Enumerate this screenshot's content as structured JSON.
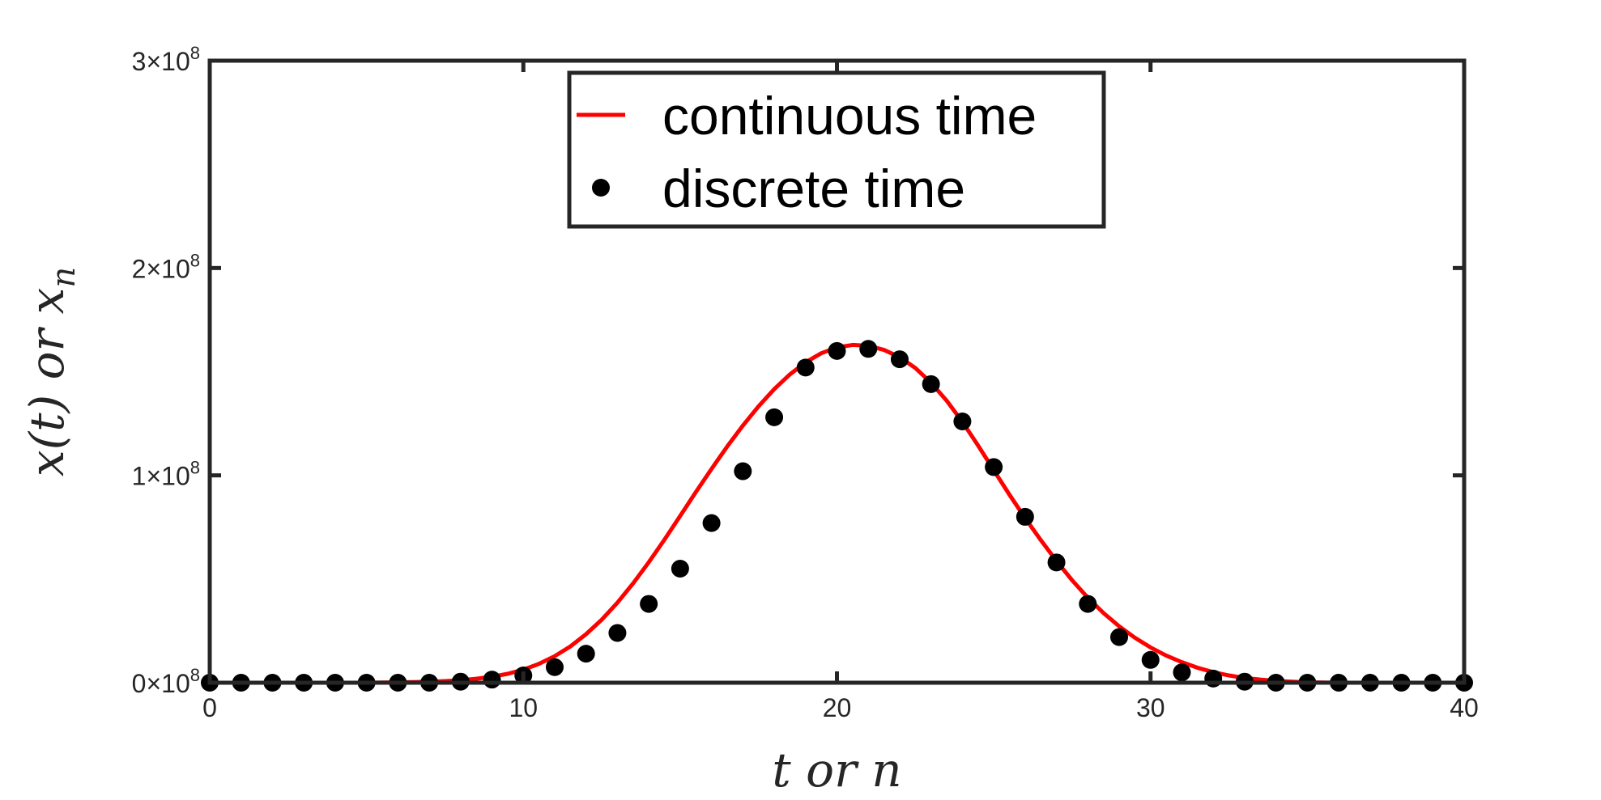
{
  "chart_data": {
    "type": "line",
    "xlabel": "t or n",
    "ylabel": "x(t) or x_n",
    "xlim": [
      0,
      40
    ],
    "ylim": [
      0,
      300000000
    ],
    "x_ticks": [
      0,
      10,
      20,
      30,
      40
    ],
    "x_tick_labels": [
      "0",
      "10",
      "20",
      "30",
      "40"
    ],
    "y_ticks": [
      0,
      100000000,
      200000000,
      300000000
    ],
    "y_tick_labels": [
      {
        "mant": "0",
        "times": "×",
        "base": "10",
        "exp": "8"
      },
      {
        "mant": "1",
        "times": "×",
        "base": "10",
        "exp": "8"
      },
      {
        "mant": "2",
        "times": "×",
        "base": "10",
        "exp": "8"
      },
      {
        "mant": "3",
        "times": "×",
        "base": "10",
        "exp": "8"
      }
    ],
    "grid": false,
    "legend_position": "top-center",
    "colors": {
      "axes": "#262626",
      "continuous": "#ff0000",
      "discrete": "#000000"
    },
    "series": [
      {
        "name": "continuous time",
        "kind": "line",
        "x": [
          0,
          0.5,
          1,
          1.5,
          2,
          2.5,
          3,
          3.5,
          4,
          4.5,
          5,
          5.5,
          6,
          6.5,
          7,
          7.5,
          8,
          8.5,
          9,
          9.5,
          10,
          10.5,
          11,
          11.5,
          12,
          12.5,
          13,
          13.5,
          14,
          14.5,
          15,
          15.5,
          16,
          16.5,
          17,
          17.5,
          18,
          18.5,
          19,
          19.5,
          20,
          20.5,
          21,
          21.5,
          22,
          22.5,
          23,
          23.5,
          24,
          24.5,
          25,
          25.5,
          26,
          26.5,
          27,
          27.5,
          28,
          28.5,
          29,
          29.5,
          30,
          30.5,
          31,
          31.5,
          32,
          32.5,
          33,
          33.5,
          34,
          34.5,
          35,
          35.5,
          36,
          36.5,
          37,
          37.5,
          38,
          38.5,
          39,
          39.5,
          40
        ],
        "y": [
          0,
          0,
          0,
          0,
          0,
          0,
          0,
          0,
          0,
          0,
          0,
          100000,
          200000,
          300000,
          500000,
          800000,
          1200000,
          1900000,
          2900000,
          4300000,
          6300000,
          9100000,
          12800000,
          17500000,
          23400000,
          30400000,
          38600000,
          47900000,
          58100000,
          69000000,
          80400000,
          91900000,
          103100000,
          113900000,
          124000000,
          133300000,
          141600000,
          148700000,
          154500000,
          158900000,
          161700000,
          162900000,
          162500000,
          160500000,
          157000000,
          151800000,
          144700000,
          136000000,
          125800000,
          114400000,
          102500000,
          90700000,
          79400000,
          68800000,
          58700000,
          49400000,
          41000000,
          33600000,
          27200000,
          21700000,
          17000000,
          13100000,
          9900000,
          7200000,
          5100000,
          3500000,
          2300000,
          1500000,
          900000,
          500000,
          200000,
          100000,
          0,
          0,
          0,
          0,
          0,
          0,
          0,
          0,
          0
        ]
      },
      {
        "name": "discrete time",
        "kind": "markers",
        "x": [
          0,
          1,
          2,
          3,
          4,
          5,
          6,
          7,
          8,
          9,
          10,
          11,
          12,
          13,
          14,
          15,
          16,
          17,
          18,
          19,
          20,
          21,
          22,
          23,
          24,
          25,
          26,
          27,
          28,
          29,
          30,
          31,
          32,
          33,
          34,
          35,
          36,
          37,
          38,
          39,
          40
        ],
        "y": [
          0,
          0,
          0,
          0,
          0,
          0,
          0,
          0,
          500000,
          1500000,
          3500000,
          7500000,
          14000000,
          24000000,
          38000000,
          55000000,
          77000000,
          102000000,
          128000000,
          152000000,
          160000000,
          161000000,
          156000000,
          144000000,
          126000000,
          104000000,
          80000000,
          58000000,
          38000000,
          22000000,
          11000000,
          5000000,
          2000000,
          500000,
          0,
          0,
          0,
          0,
          0,
          0,
          0
        ]
      }
    ]
  }
}
